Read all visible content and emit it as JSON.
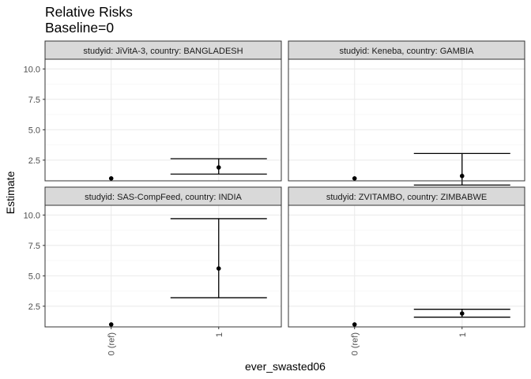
{
  "chart_data": {
    "type": "scatter",
    "title": "Relative Risks",
    "subtitle": "Baseline=0",
    "xlabel": "ever_swasted06",
    "ylabel": "Estimate",
    "categories": [
      "0 (ref)",
      "1"
    ],
    "y_ticks": [
      "2.5",
      "5.0",
      "7.5",
      "10.0"
    ],
    "ylim": [
      0.8,
      10.8
    ],
    "grid": true,
    "facet_layout": "2x2 grid",
    "colors": {
      "panel_border": "#333333",
      "strip_fill": "#d9d9d9",
      "grid_major": "#ebebeb",
      "grid_minor": "#f5f5f5",
      "points": "#000000",
      "axis_text": "#4d4d4d"
    },
    "panels": [
      {
        "strip": "studyid: JiVitA-3, country: BANGLADESH",
        "points": [
          {
            "x": "0 (ref)",
            "y": 1.0
          },
          {
            "x": "1",
            "y": 1.9,
            "lower": 1.35,
            "upper": 2.62
          }
        ]
      },
      {
        "strip": "studyid: Keneba, country: GAMBIA",
        "points": [
          {
            "x": "0 (ref)",
            "y": 1.0
          },
          {
            "x": "1",
            "y": 1.2,
            "lower": 0.45,
            "upper": 3.05
          }
        ]
      },
      {
        "strip": "studyid: SAS-CompFeed, country: INDIA",
        "points": [
          {
            "x": "0 (ref)",
            "y": 1.0
          },
          {
            "x": "1",
            "y": 5.6,
            "lower": 3.2,
            "upper": 9.7
          }
        ]
      },
      {
        "strip": "studyid: ZVITAMBO, country: ZIMBABWE",
        "points": [
          {
            "x": "0 (ref)",
            "y": 1.0
          },
          {
            "x": "1",
            "y": 1.9,
            "lower": 1.6,
            "upper": 2.25
          }
        ]
      }
    ]
  }
}
